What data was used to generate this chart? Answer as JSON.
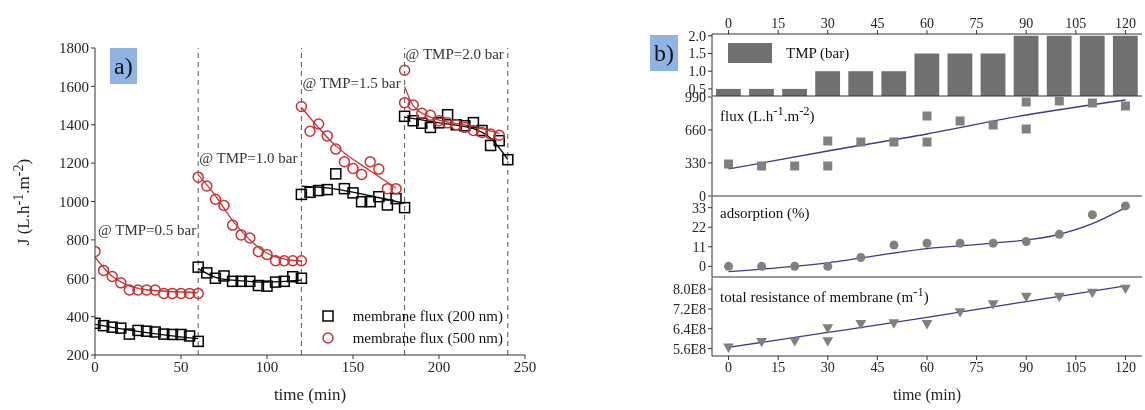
{
  "chart_data": [
    {
      "type": "scatter",
      "xlabel": "time (min)",
      "ylabel": "J (L.h$^{-1}$.m$^{-2}$)",
      "xlim": [
        0,
        250
      ],
      "xticks": [
        0,
        50,
        100,
        150,
        200,
        250
      ],
      "ylim": [
        200,
        1800
      ],
      "yticks": [
        200,
        400,
        600,
        800,
        1000,
        1200,
        1400,
        1600,
        1800
      ],
      "legend": "bottom right",
      "annotations": [
        "a)",
        "@ TMP=0.5 bar",
        {
          "text": "@ TMP=1.0 bar",
          "x": 60,
          "y": 1200
        },
        {
          "text": "@ TMP=1.5 bar",
          "x": 120,
          "y": 1590
        },
        {
          "text": "@ TMP=2.0 bar",
          "x": 180,
          "y": 1745
        }
      ],
      "ref_lines": [
        {
          "axis": "x",
          "value": 60,
          "color": "#555555",
          "line_style": "dashed"
        },
        {
          "axis": "x",
          "value": 120,
          "color": "#555555",
          "line_style": "dashed"
        },
        {
          "axis": "x",
          "value": 180,
          "color": "#555555",
          "line_style": "dashed"
        },
        {
          "axis": "x",
          "value": 240,
          "color": "#555555",
          "line_style": "dashed"
        }
      ],
      "series": [
        {
          "name": "membrane flux (200 nm)",
          "color": "#000000",
          "marker": "square",
          "x": [
            0,
            5,
            10,
            15,
            20,
            25,
            30,
            35,
            40,
            45,
            50,
            55,
            60,
            60,
            65,
            70,
            75,
            80,
            85,
            90,
            95,
            100,
            105,
            110,
            115,
            120,
            120,
            125,
            130,
            135,
            140,
            145,
            150,
            155,
            160,
            165,
            170,
            175,
            180,
            180,
            185,
            190,
            195,
            200,
            205,
            210,
            215,
            220,
            225,
            230,
            235,
            240
          ],
          "values": [
            365,
            353,
            345,
            340,
            309,
            328,
            324,
            320,
            309,
            307,
            307,
            299,
            271,
            658,
            628,
            600,
            612,
            584,
            584,
            584,
            562,
            559,
            580,
            584,
            608,
            600,
            1037,
            1048,
            1057,
            1062,
            1144,
            1067,
            1045,
            999,
            999,
            1025,
            982,
            1015,
            968,
            1444,
            1421,
            1408,
            1386,
            1410,
            1452,
            1400,
            1395,
            1411,
            1370,
            1292,
            1317,
            1218
          ]
        },
        {
          "name": "membrane flux (500 nm)",
          "color": "#c83232",
          "marker": "circle",
          "x": [
            0,
            5,
            10,
            15,
            20,
            25,
            30,
            35,
            40,
            45,
            50,
            55,
            60,
            60,
            65,
            70,
            75,
            80,
            85,
            90,
            95,
            100,
            105,
            110,
            115,
            120,
            120,
            125,
            130,
            135,
            140,
            145,
            150,
            155,
            160,
            165,
            170,
            175,
            180,
            180,
            185,
            190,
            195,
            200,
            205,
            210,
            215,
            220,
            225,
            230,
            235
          ],
          "values": [
            740,
            641,
            609,
            576,
            539,
            539,
            539,
            539,
            521,
            521,
            521,
            521,
            521,
            1127,
            1081,
            1012,
            979,
            877,
            826,
            810,
            740,
            724,
            691,
            691,
            691,
            691,
            1495,
            1366,
            1404,
            1342,
            1273,
            1207,
            1172,
            1141,
            1207,
            1169,
            1067,
            1067,
            1684,
            1515,
            1503,
            1460,
            1449,
            1421,
            1410,
            1400,
            1386,
            1370,
            1360,
            1352,
            1345
          ]
        },
        {
          "type": "line",
          "color": "#000000",
          "x": [
            0,
            20,
            40,
            60
          ],
          "values": [
            360,
            330,
            305,
            285
          ]
        },
        {
          "type": "line",
          "color": "#000000",
          "x": [
            60,
            70,
            80,
            100,
            120
          ],
          "values": [
            650,
            605,
            590,
            580,
            590
          ]
        },
        {
          "type": "line",
          "color": "#000000",
          "x": [
            120,
            140,
            160,
            180
          ],
          "values": [
            1080,
            1065,
            1030,
            990
          ]
        },
        {
          "type": "line",
          "color": "#000000",
          "x": [
            180,
            200,
            220,
            230,
            240
          ],
          "values": [
            1440,
            1410,
            1380,
            1330,
            1220
          ]
        },
        {
          "type": "line",
          "color": "#c83232",
          "x": [
            0,
            10,
            20,
            30,
            60
          ],
          "values": [
            710,
            610,
            560,
            540,
            525
          ]
        },
        {
          "type": "line",
          "color": "#c83232",
          "x": [
            60,
            70,
            80,
            90,
            100,
            110,
            120
          ],
          "values": [
            1140,
            1030,
            900,
            800,
            730,
            700,
            690
          ]
        },
        {
          "type": "line",
          "color": "#c83232",
          "x": [
            120,
            140,
            160,
            175
          ],
          "values": [
            1490,
            1290,
            1160,
            1070
          ]
        },
        {
          "type": "line",
          "color": "#c83232",
          "x": [
            180,
            185,
            195,
            220,
            235
          ],
          "values": [
            1600,
            1500,
            1440,
            1390,
            1355
          ]
        }
      ]
    },
    {
      "type": "bar",
      "xlim": [
        -5,
        125
      ],
      "xticks": [
        0,
        15,
        30,
        45,
        60,
        75,
        90,
        105,
        120
      ],
      "tick_labels": "y",
      "x2lim": [
        -5,
        125
      ],
      "x2ticks": [
        0,
        15,
        30,
        45,
        60,
        75,
        90,
        105,
        120
      ],
      "x": [
        0,
        10,
        20,
        30,
        40,
        50,
        60,
        70,
        80,
        90,
        100,
        110,
        120
      ],
      "ylim": [
        0.3,
        2.05
      ],
      "yticks": [
        0.5,
        {
          "value": 1,
          "label": "1.0"
        },
        1.5,
        {
          "value": 2,
          "label": "2.0"
        }
      ],
      "legend": "top left",
      "annotations": [
        "b)"
      ],
      "series": [
        {
          "name": "TMP (bar)",
          "color": "#707070",
          "values": [
            0.5,
            0.5,
            0.5,
            1,
            1,
            1,
            1.5,
            1.5,
            1.5,
            2,
            2,
            2,
            2
          ]
        }
      ]
    },
    {
      "type": "scatter",
      "title": "flux (L.h$^{-1}$.m$^{-2}$)",
      "xlim": [
        -5,
        125
      ],
      "xticks": [
        0,
        15,
        30,
        45,
        60,
        75,
        90,
        105,
        120
      ],
      "ylim": [
        0,
        990
      ],
      "yticks": [
        0,
        330,
        660,
        990
      ],
      "tick_labels": "y",
      "series": [
        {
          "color": "#808080",
          "marker": "square",
          "x": [
            0,
            10,
            20,
            30,
            30,
            40,
            50,
            60,
            60,
            70,
            80,
            90,
            90,
            100,
            110,
            120
          ],
          "values": [
            320,
            300,
            300,
            300,
            550,
            540,
            540,
            540,
            800,
            750,
            710,
            670,
            940,
            950,
            930,
            900
          ]
        },
        {
          "type": "line",
          "color": "#3a3a8c",
          "x": [
            0,
            30,
            60,
            90,
            120
          ],
          "values": [
            270,
            450,
            620,
            810,
            960
          ]
        }
      ]
    },
    {
      "type": "scatter",
      "title": "adsorption (%)",
      "xlim": [
        -5,
        125
      ],
      "xticks": [
        0,
        15,
        30,
        45,
        60,
        75,
        90,
        105,
        120
      ],
      "ylim": [
        -6,
        39
      ],
      "yticks": [
        0,
        11,
        22,
        33
      ],
      "tick_labels": "y",
      "series": [
        {
          "color": "#808080",
          "marker": "circle",
          "x": [
            0,
            10,
            20,
            30,
            40,
            50,
            60,
            70,
            80,
            90,
            100,
            110,
            120
          ],
          "values": [
            0,
            0,
            0,
            0,
            5,
            12,
            13,
            13,
            13,
            14,
            18,
            29,
            34
          ]
        },
        {
          "type": "line",
          "color": "#3a3a8c",
          "x": [
            0,
            30,
            60,
            80,
            100,
            110,
            120
          ],
          "values": [
            -3,
            2,
            10,
            13,
            18,
            24,
            33
          ]
        }
      ]
    },
    {
      "type": "scatter",
      "title": "total resistance of membrane (m$^{-1}$)",
      "xlabel": "time (min)",
      "xlim": [
        -5,
        125
      ],
      "xticks": [
        0,
        15,
        30,
        45,
        60,
        75,
        90,
        105,
        120
      ],
      "ylim": [
        530000000,
        845000000
      ],
      "yticks": [
        {
          "value": 560000000,
          "label": "5.6E8"
        },
        {
          "value": 640000000,
          "label": "6.4E8"
        },
        {
          "value": 720000000,
          "label": "7.2E8"
        },
        {
          "value": 800000000,
          "label": "8.0E8"
        }
      ],
      "series": [
        {
          "color": "#808080",
          "marker": "triangle",
          "x": [
            0,
            10,
            20,
            30,
            30,
            40,
            50,
            60,
            70,
            80,
            90,
            100,
            110,
            120
          ],
          "values": [
            562000000,
            585000000,
            588000000,
            640000000,
            588000000,
            657000000,
            660000000,
            657000000,
            705000000,
            737000000,
            767000000,
            767000000,
            783000000,
            800000000
          ]
        },
        {
          "type": "line",
          "color": "#3a3a8c",
          "x": [
            0,
            30,
            60,
            90,
            120
          ],
          "values": [
            565000000,
            625000000,
            686000000,
            750000000,
            813000000
          ]
        }
      ]
    }
  ]
}
